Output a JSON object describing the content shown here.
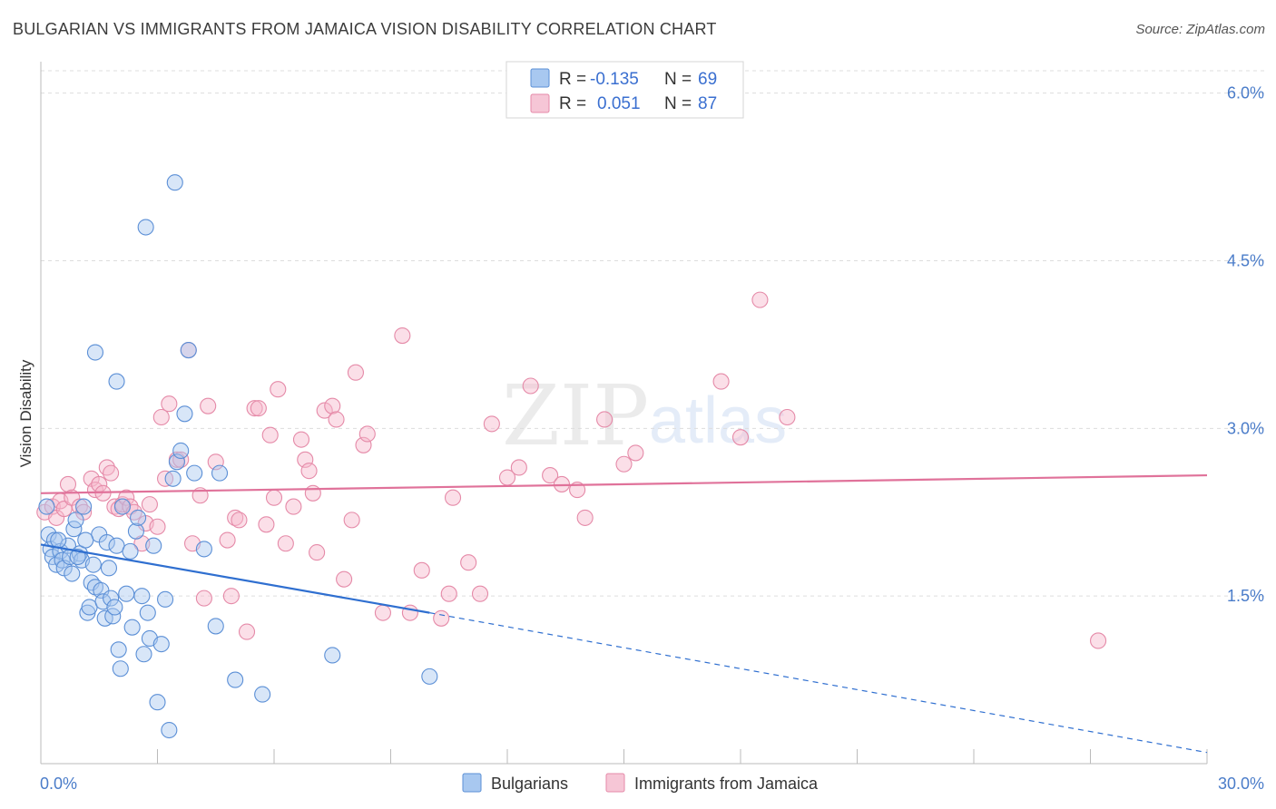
{
  "title": "BULGARIAN VS IMMIGRANTS FROM JAMAICA VISION DISABILITY CORRELATION CHART",
  "source": "Source: ZipAtlas.com",
  "watermark": {
    "zip": "ZIP",
    "atlas": "atlas"
  },
  "colors": {
    "blue_fill": "#a8c8f0",
    "blue_stroke": "#5b8fd6",
    "blue_line": "#2f6fd0",
    "pink_fill": "#f6b8cc",
    "pink_stroke": "#e58aa8",
    "pink_line": "#e0729a",
    "tick_text": "#4a7cc9",
    "grid": "#dddddd"
  },
  "legend": {
    "rows": [
      {
        "r_label": "R =",
        "r_value": "-0.135",
        "n_label": "N =",
        "n_value": "69",
        "series": "blue"
      },
      {
        "r_label": "R =",
        "r_value": "0.051",
        "n_label": "N =",
        "n_value": "87",
        "series": "pink"
      }
    ]
  },
  "bottom_legend": [
    "Bulgarians",
    "Immigrants from Jamaica"
  ],
  "chart_data": {
    "type": "scatter",
    "title": "BULGARIAN VS IMMIGRANTS FROM JAMAICA VISION DISABILITY CORRELATION CHART",
    "xlabel": "",
    "ylabel": "Vision Disability",
    "xlim": [
      0,
      30
    ],
    "ylim": [
      0,
      6.2
    ],
    "x_tick_labels": [
      "0.0%",
      "30.0%"
    ],
    "y_ticks": [
      1.5,
      3.0,
      4.5,
      6.0
    ],
    "y_tick_labels": [
      "1.5%",
      "3.0%",
      "4.5%",
      "6.0%"
    ],
    "grid": true,
    "legend_position": "top-center",
    "series": [
      {
        "name": "Bulgarians",
        "color": "blue",
        "r": -0.135,
        "n": 69,
        "trend": {
          "x0": 0,
          "y0": 1.96,
          "x1": 10.0,
          "y1": 1.35,
          "dash_to_x": 30,
          "dash_to_y": 0.1
        },
        "points": [
          [
            0.2,
            2.05
          ],
          [
            0.25,
            1.92
          ],
          [
            0.3,
            1.85
          ],
          [
            0.35,
            2.0
          ],
          [
            0.4,
            1.78
          ],
          [
            0.5,
            1.9
          ],
          [
            0.55,
            1.82
          ],
          [
            0.6,
            1.75
          ],
          [
            0.7,
            1.95
          ],
          [
            0.75,
            1.85
          ],
          [
            0.8,
            1.7
          ],
          [
            0.85,
            2.1
          ],
          [
            0.9,
            2.18
          ],
          [
            1.0,
            1.88
          ],
          [
            1.05,
            1.82
          ],
          [
            1.1,
            2.3
          ],
          [
            1.2,
            1.35
          ],
          [
            1.25,
            1.4
          ],
          [
            1.3,
            1.62
          ],
          [
            1.35,
            1.78
          ],
          [
            1.4,
            1.58
          ],
          [
            1.5,
            2.05
          ],
          [
            1.55,
            1.55
          ],
          [
            1.6,
            1.45
          ],
          [
            1.65,
            1.3
          ],
          [
            1.7,
            1.98
          ],
          [
            1.75,
            1.75
          ],
          [
            1.8,
            1.48
          ],
          [
            1.85,
            1.32
          ],
          [
            1.9,
            1.4
          ],
          [
            1.95,
            1.95
          ],
          [
            2.0,
            1.02
          ],
          [
            2.05,
            0.85
          ],
          [
            2.2,
            1.52
          ],
          [
            2.3,
            1.9
          ],
          [
            2.35,
            1.22
          ],
          [
            2.45,
            2.08
          ],
          [
            2.5,
            2.2
          ],
          [
            2.6,
            1.5
          ],
          [
            2.65,
            0.98
          ],
          [
            2.8,
            1.12
          ],
          [
            2.9,
            1.95
          ],
          [
            3.1,
            1.07
          ],
          [
            3.2,
            1.47
          ],
          [
            3.4,
            2.55
          ],
          [
            3.5,
            2.7
          ],
          [
            3.6,
            2.8
          ],
          [
            3.7,
            3.13
          ],
          [
            3.8,
            3.7
          ],
          [
            4.6,
            2.6
          ],
          [
            4.5,
            1.23
          ],
          [
            5.0,
            0.75
          ],
          [
            5.7,
            0.62
          ],
          [
            4.2,
            1.92
          ],
          [
            3.0,
            0.55
          ],
          [
            3.3,
            0.3
          ],
          [
            2.7,
            4.8
          ],
          [
            3.45,
            5.2
          ],
          [
            1.4,
            3.68
          ],
          [
            1.95,
            3.42
          ],
          [
            2.1,
            2.3
          ],
          [
            0.15,
            2.3
          ],
          [
            0.45,
            2.0
          ],
          [
            1.15,
            2.0
          ],
          [
            2.75,
            1.35
          ],
          [
            3.95,
            2.6
          ],
          [
            7.5,
            0.97
          ],
          [
            10.0,
            0.78
          ],
          [
            0.95,
            1.85
          ]
        ]
      },
      {
        "name": "Immigrants from Jamaica",
        "color": "pink",
        "r": 0.051,
        "n": 87,
        "trend": {
          "x0": 0,
          "y0": 2.42,
          "x1": 30,
          "y1": 2.58
        },
        "points": [
          [
            0.1,
            2.25
          ],
          [
            0.3,
            2.3
          ],
          [
            0.4,
            2.2
          ],
          [
            0.5,
            2.35
          ],
          [
            0.6,
            2.28
          ],
          [
            0.7,
            2.5
          ],
          [
            0.8,
            2.38
          ],
          [
            1.0,
            2.3
          ],
          [
            1.1,
            2.25
          ],
          [
            1.3,
            2.55
          ],
          [
            1.4,
            2.45
          ],
          [
            1.5,
            2.5
          ],
          [
            1.6,
            2.42
          ],
          [
            1.7,
            2.65
          ],
          [
            1.8,
            2.6
          ],
          [
            1.9,
            2.3
          ],
          [
            2.0,
            2.28
          ],
          [
            2.1,
            2.32
          ],
          [
            2.2,
            2.38
          ],
          [
            2.3,
            2.3
          ],
          [
            2.4,
            2.25
          ],
          [
            2.6,
            1.97
          ],
          [
            2.7,
            2.15
          ],
          [
            2.8,
            2.32
          ],
          [
            3.0,
            2.12
          ],
          [
            3.1,
            3.1
          ],
          [
            3.2,
            2.55
          ],
          [
            3.3,
            3.22
          ],
          [
            3.5,
            2.72
          ],
          [
            3.6,
            2.72
          ],
          [
            3.8,
            3.7
          ],
          [
            3.9,
            1.97
          ],
          [
            4.1,
            2.4
          ],
          [
            4.2,
            1.48
          ],
          [
            4.3,
            3.2
          ],
          [
            4.5,
            2.7
          ],
          [
            4.8,
            2.0
          ],
          [
            4.9,
            1.5
          ],
          [
            5.0,
            2.2
          ],
          [
            5.1,
            2.18
          ],
          [
            5.3,
            1.18
          ],
          [
            5.5,
            3.18
          ],
          [
            5.6,
            3.18
          ],
          [
            5.8,
            2.14
          ],
          [
            5.9,
            2.94
          ],
          [
            6.0,
            2.38
          ],
          [
            6.1,
            3.35
          ],
          [
            6.3,
            1.97
          ],
          [
            6.5,
            2.3
          ],
          [
            6.7,
            2.9
          ],
          [
            6.8,
            2.72
          ],
          [
            6.9,
            2.62
          ],
          [
            7.0,
            2.42
          ],
          [
            7.1,
            1.89
          ],
          [
            7.3,
            3.16
          ],
          [
            7.5,
            3.2
          ],
          [
            7.6,
            3.08
          ],
          [
            7.8,
            1.65
          ],
          [
            8.0,
            2.18
          ],
          [
            8.1,
            3.5
          ],
          [
            8.3,
            2.85
          ],
          [
            8.4,
            2.95
          ],
          [
            8.8,
            1.35
          ],
          [
            9.3,
            3.83
          ],
          [
            9.5,
            1.35
          ],
          [
            9.8,
            1.73
          ],
          [
            10.3,
            1.3
          ],
          [
            10.5,
            1.52
          ],
          [
            10.6,
            2.38
          ],
          [
            11.0,
            1.8
          ],
          [
            11.3,
            1.52
          ],
          [
            11.6,
            3.04
          ],
          [
            12.0,
            2.56
          ],
          [
            12.3,
            2.65
          ],
          [
            12.6,
            3.38
          ],
          [
            13.1,
            2.58
          ],
          [
            13.4,
            2.5
          ],
          [
            13.8,
            2.45
          ],
          [
            14.0,
            2.2
          ],
          [
            14.5,
            3.08
          ],
          [
            15.0,
            2.68
          ],
          [
            15.3,
            2.78
          ],
          [
            17.5,
            3.42
          ],
          [
            18.0,
            2.92
          ],
          [
            18.5,
            4.15
          ],
          [
            19.2,
            3.1
          ],
          [
            27.2,
            1.1
          ]
        ]
      }
    ]
  }
}
